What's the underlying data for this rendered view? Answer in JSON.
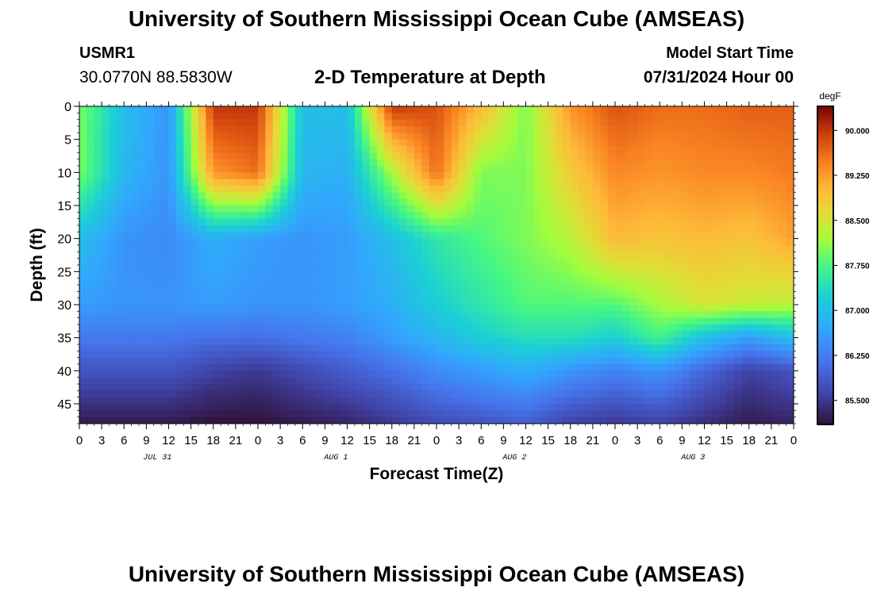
{
  "header": {
    "title": "University of Southern Mississippi Ocean Cube (AMSEAS)",
    "station_id": "USMR1",
    "station_coords": "30.0770N  88.5830W",
    "subtitle": "2-D Temperature at Depth",
    "model_start_label": "Model Start Time",
    "model_start_value": "07/31/2024 Hour 00"
  },
  "footer": {
    "title": "University of Southern Mississippi Ocean Cube (AMSEAS)"
  },
  "chart_data": {
    "type": "heatmap",
    "title": "2-D Temperature at Depth",
    "xlabel": "Forecast Time(Z)",
    "ylabel": "Depth (ft)",
    "units": "degF",
    "x_ticks": [
      "0",
      "3",
      "6",
      "9",
      "12",
      "15",
      "18",
      "21",
      "0",
      "3",
      "6",
      "9",
      "12",
      "15",
      "18",
      "21",
      "0",
      "3",
      "6",
      "9",
      "12",
      "15",
      "18",
      "21",
      "0",
      "3",
      "6",
      "9",
      "12",
      "15",
      "18",
      "21",
      "0"
    ],
    "x_day_labels": [
      "JUL 31",
      "AUG 1",
      "AUG 2",
      "AUG 3"
    ],
    "xlim_hours": [
      0,
      96
    ],
    "y_ticks": [
      0,
      5,
      10,
      15,
      20,
      25,
      30,
      35,
      40,
      45
    ],
    "ylim_ft": [
      0,
      48
    ],
    "colorbar": {
      "label": "degF",
      "ticks": [
        "90.000",
        "89.250",
        "88.500",
        "87.750",
        "87.000",
        "86.250",
        "85.500"
      ],
      "range": [
        85.1,
        90.4
      ]
    },
    "data_grid": {
      "hours": [
        0,
        6,
        12,
        18,
        24,
        30,
        36,
        42,
        48,
        54,
        60,
        66,
        72,
        78,
        84,
        90,
        96
      ],
      "depths_ft": [
        0,
        10,
        20,
        30,
        35,
        40,
        48
      ],
      "values": [
        [
          88.0,
          87.0,
          86.5,
          90.0,
          90.0,
          87.0,
          87.0,
          90.0,
          89.8,
          89.0,
          88.0,
          89.3,
          89.8,
          89.6,
          89.6,
          89.7,
          89.7
        ],
        [
          88.0,
          86.9,
          86.5,
          89.3,
          89.6,
          86.9,
          86.8,
          88.2,
          89.6,
          88.0,
          88.0,
          88.8,
          89.4,
          89.3,
          89.4,
          89.4,
          89.5
        ],
        [
          87.0,
          86.5,
          86.4,
          86.8,
          86.6,
          86.5,
          86.6,
          87.0,
          87.5,
          87.8,
          88.0,
          88.3,
          89.0,
          88.9,
          89.0,
          88.9,
          89.2
        ],
        [
          86.6,
          86.5,
          86.5,
          86.6,
          86.5,
          86.5,
          86.6,
          86.8,
          87.2,
          87.5,
          87.8,
          87.8,
          87.8,
          88.2,
          88.5,
          88.4,
          88.3
        ],
        [
          86.2,
          86.2,
          86.2,
          86.1,
          86.1,
          86.2,
          86.3,
          86.6,
          86.9,
          87.2,
          87.4,
          87.4,
          87.2,
          87.7,
          87.0,
          86.6,
          87.0
        ],
        [
          85.8,
          85.8,
          85.8,
          85.6,
          85.5,
          85.7,
          85.9,
          86.1,
          86.4,
          86.6,
          86.8,
          86.5,
          86.3,
          86.5,
          86.0,
          85.6,
          85.8
        ],
        [
          85.2,
          85.2,
          85.2,
          85.1,
          85.1,
          85.2,
          85.3,
          85.5,
          85.7,
          85.8,
          85.9,
          85.6,
          85.5,
          85.6,
          85.4,
          85.2,
          85.3
        ]
      ]
    }
  }
}
